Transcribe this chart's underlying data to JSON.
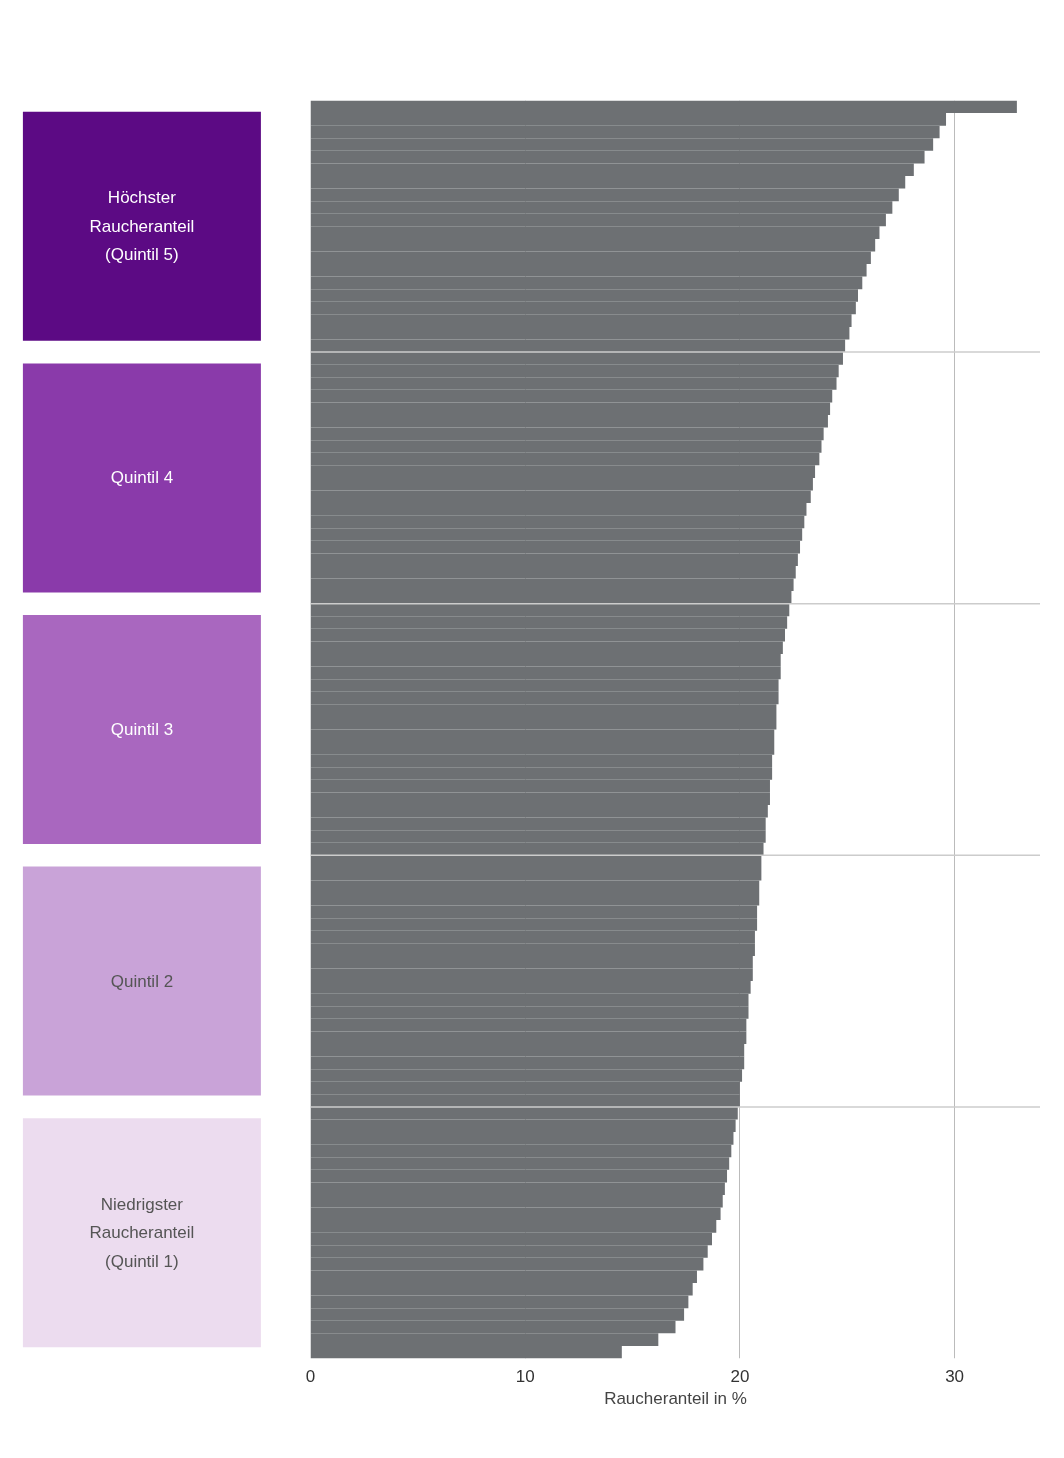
{
  "chart_data": {
    "type": "bar",
    "orientation": "horizontal",
    "categories": [
      null,
      null,
      null,
      null,
      null,
      null,
      null,
      null,
      null,
      null,
      null,
      null,
      null,
      null,
      null,
      null,
      null,
      null,
      null,
      null,
      null,
      null,
      null,
      null,
      null,
      null,
      null,
      null,
      null,
      null,
      null,
      null,
      null,
      null,
      null,
      null,
      null,
      null,
      null,
      null,
      null,
      null,
      null,
      null,
      null,
      null,
      null,
      null,
      null,
      null,
      null,
      null,
      null,
      null,
      null,
      null,
      null,
      null,
      null,
      null,
      null,
      null,
      null,
      null,
      null,
      null,
      null,
      null,
      null,
      null,
      null,
      null,
      null,
      null,
      null,
      null,
      null,
      null,
      null,
      null,
      null,
      null,
      null,
      null,
      null,
      null,
      null,
      null,
      null,
      null,
      null,
      null,
      null,
      null,
      null,
      null,
      null,
      null,
      null,
      null
    ],
    "series": [
      {
        "color": "#6d7073",
        "values": [
          32.9,
          29.6,
          29.3,
          29.0,
          28.6,
          28.1,
          27.7,
          27.4,
          27.1,
          26.8,
          26.5,
          26.3,
          26.1,
          25.9,
          25.7,
          25.5,
          25.4,
          25.2,
          25.1,
          24.9,
          24.8,
          24.6,
          24.5,
          24.3,
          24.2,
          24.1,
          23.9,
          23.8,
          23.7,
          23.5,
          23.4,
          23.3,
          23.1,
          23.0,
          22.9,
          22.8,
          22.7,
          22.6,
          22.5,
          22.4,
          22.3,
          22.2,
          22.1,
          22.0,
          21.9,
          21.9,
          21.8,
          21.8,
          21.7,
          21.7,
          21.6,
          21.6,
          21.5,
          21.5,
          21.4,
          21.4,
          21.3,
          21.2,
          21.2,
          21.1,
          21.0,
          21.0,
          20.9,
          20.9,
          20.8,
          20.8,
          20.7,
          20.7,
          20.6,
          20.6,
          20.5,
          20.4,
          20.4,
          20.3,
          20.3,
          20.2,
          20.2,
          20.1,
          20.0,
          20.0,
          19.9,
          19.8,
          19.7,
          19.6,
          19.5,
          19.4,
          19.3,
          19.2,
          19.1,
          18.9,
          18.7,
          18.5,
          18.3,
          18.0,
          17.8,
          17.6,
          17.4,
          17.0,
          16.2,
          14.5
        ]
      }
    ],
    "xlim": [
      0,
      34
    ],
    "xticks": [
      0,
      10,
      20,
      30
    ],
    "tick_labels": "x",
    "grid": "x",
    "xlabel": "Raucheranteil in %",
    "annotations": [
      "Höchster Raucheranteil (Quintil 5)",
      "Quintil 4",
      "Quintil 3",
      "Quintil 2",
      "Niedrigster Raucheranteil (Quintil 1)"
    ]
  }
}
